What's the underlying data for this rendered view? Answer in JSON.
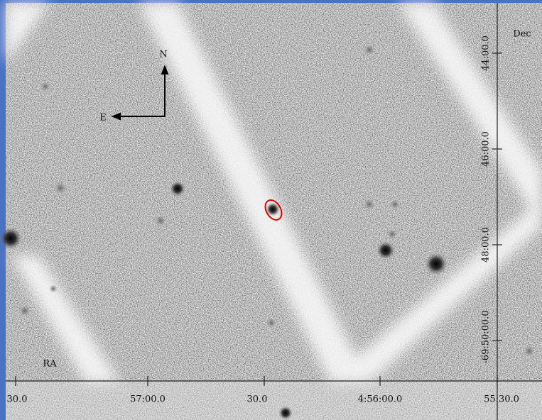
{
  "compass": {
    "north": "N",
    "east": "E"
  },
  "axes": {
    "dec_label": "Dec",
    "ra_label": "RA",
    "dec_ticks": [
      "44:00.0",
      "46:00.0",
      "48:00.0",
      "-69:50:00.0"
    ],
    "ra_ticks": [
      "30.0",
      "57:00.0",
      "30.0",
      "4:56:00.0",
      "55:30.0"
    ]
  }
}
